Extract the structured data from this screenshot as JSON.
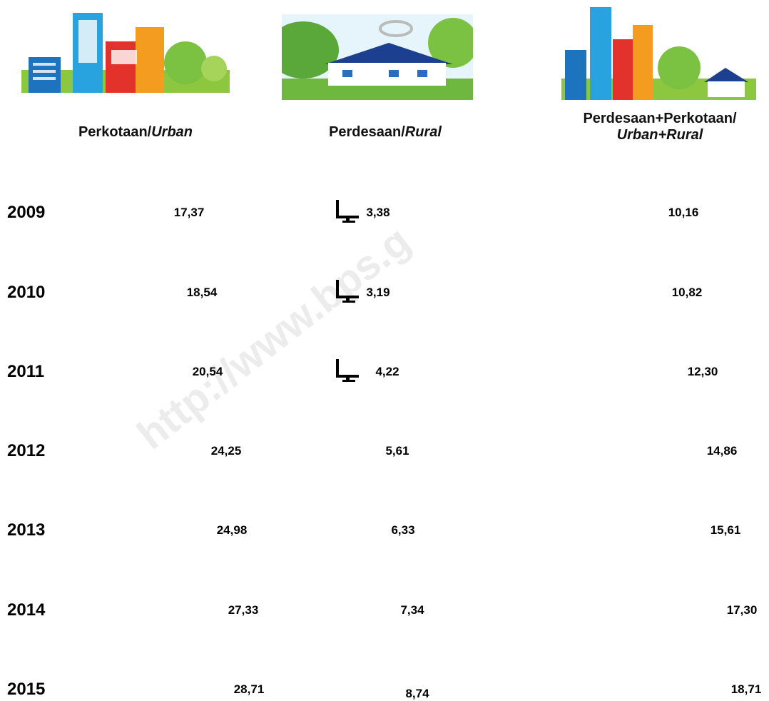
{
  "watermark": "http://www.bps.g",
  "table": {
    "headers": [
      {
        "text": "Perkotaan/",
        "italic": "Urban"
      },
      {
        "text": "Perdesaan/",
        "italic": "Rural"
      },
      {
        "text": "Perdesaan+Perkotaan/",
        "italic": "Urban+Rural"
      }
    ],
    "rows": [
      [
        "2009",
        "17,37",
        "3,38",
        "10,16"
      ],
      [
        "2010",
        "18,54",
        "3,19",
        "10,82"
      ],
      [
        "2011",
        "20,54",
        "4,22",
        "12,30"
      ],
      [
        "2012",
        "24,25",
        "5,61",
        "14,86"
      ],
      [
        "2013",
        "24,98",
        "6,33",
        "15,61"
      ],
      [
        "2014",
        "27,33",
        "7,34",
        "17,30"
      ],
      [
        "2015",
        "28,71",
        "8,74",
        "18,71"
      ]
    ]
  }
}
